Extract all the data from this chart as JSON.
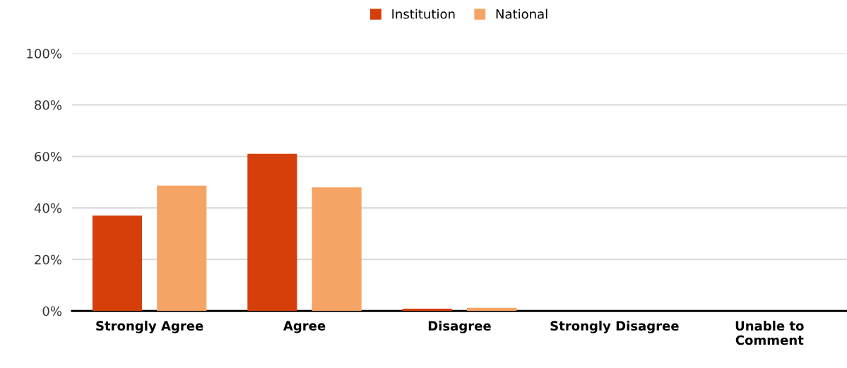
{
  "chart_data": {
    "type": "bar",
    "categories": [
      "Strongly Agree",
      "Agree",
      "Disagree",
      "Strongly Disagree",
      "Unable to\nComment"
    ],
    "series": [
      {
        "name": "Institution",
        "color": "#d63f0a",
        "values": [
          37,
          61,
          0.9,
          0,
          0
        ]
      },
      {
        "name": "National",
        "color": "#f6a465",
        "values": [
          48.7,
          48,
          1.2,
          0,
          0
        ]
      }
    ],
    "ylim": [
      0,
      100
    ],
    "yticks": [
      {
        "value": 0,
        "label": "0%"
      },
      {
        "value": 20,
        "label": "20%"
      },
      {
        "value": 40,
        "label": "40%"
      },
      {
        "value": 60,
        "label": "60%"
      },
      {
        "value": 80,
        "label": "80%"
      },
      {
        "value": 100,
        "label": "100%"
      }
    ],
    "grid": "y",
    "legend": "top"
  }
}
